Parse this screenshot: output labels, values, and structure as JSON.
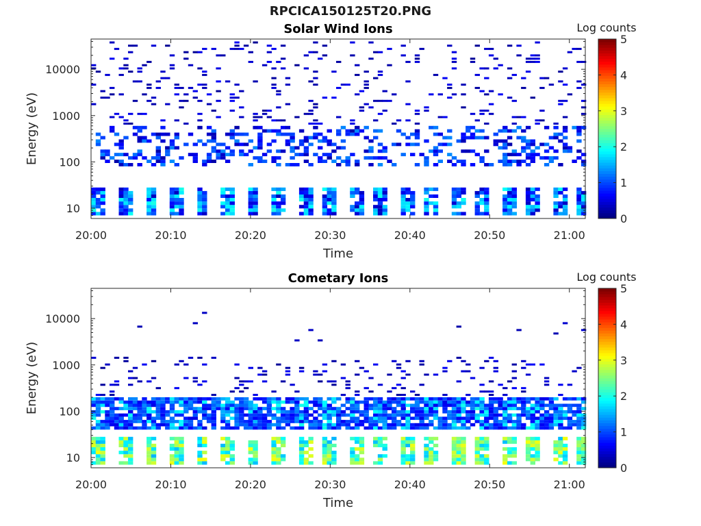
{
  "figure": {
    "title": "RPCICA150125T20.PNG"
  },
  "chart_data": [
    {
      "type": "heatmap",
      "title": "Solar Wind Ions",
      "xlabel": "Time",
      "ylabel": "Energy (eV)",
      "x_range": [
        "20:00",
        "21:02"
      ],
      "x_ticks": [
        "20:00",
        "20:10",
        "20:20",
        "20:30",
        "20:40",
        "20:50",
        "21:00"
      ],
      "y_scale": "log",
      "y_range": [
        6,
        45000
      ],
      "y_ticks": [
        "10",
        "100",
        "1000",
        "10000"
      ],
      "colorbar": {
        "label": "Log counts",
        "range": [
          0,
          5
        ],
        "ticks": [
          "0",
          "1",
          "2",
          "3",
          "4",
          "5"
        ],
        "colormap": "jet"
      },
      "period_minutes": 3.2,
      "features": [
        {
          "energy_range_eV": [
            7,
            28
          ],
          "log_counts": [
            0.3,
            2.0
          ],
          "pattern": "pulses every ~3.2 min"
        },
        {
          "energy_range_eV": [
            80,
            600
          ],
          "log_counts": [
            0.2,
            1.8
          ],
          "pattern": "blocks"
        },
        {
          "energy_range_eV": [
            600,
            40000
          ],
          "log_counts": [
            0.1,
            0.6
          ],
          "pattern": "sparse short bars"
        }
      ]
    },
    {
      "type": "heatmap",
      "title": "Cometary Ions",
      "xlabel": "Time",
      "ylabel": "Energy (eV)",
      "x_range": [
        "20:00",
        "21:02"
      ],
      "x_ticks": [
        "20:00",
        "20:10",
        "20:20",
        "20:30",
        "20:40",
        "20:50",
        "21:00"
      ],
      "y_scale": "log",
      "y_range": [
        6,
        45000
      ],
      "y_ticks": [
        "10",
        "100",
        "1000",
        "10000"
      ],
      "colorbar": {
        "label": "Log counts",
        "range": [
          0,
          5
        ],
        "ticks": [
          "0",
          "1",
          "2",
          "3",
          "4",
          "5"
        ],
        "colormap": "jet"
      },
      "period_minutes": 3.2,
      "features": [
        {
          "energy_range_eV": [
            7,
            28
          ],
          "log_counts": [
            1.5,
            3.1
          ],
          "pattern": "pulses every ~3.2 min"
        },
        {
          "energy_range_eV": [
            40,
            200
          ],
          "log_counts": [
            0.5,
            2.0
          ],
          "pattern": "continuous band"
        },
        {
          "energy_range_eV": [
            200,
            1500
          ],
          "log_counts": [
            0.1,
            0.6
          ],
          "pattern": "sparse short bars"
        },
        {
          "energy_range_eV": [
            3000,
            14000
          ],
          "log_counts": [
            0.2,
            0.4
          ],
          "pattern": "isolated points"
        }
      ]
    }
  ]
}
